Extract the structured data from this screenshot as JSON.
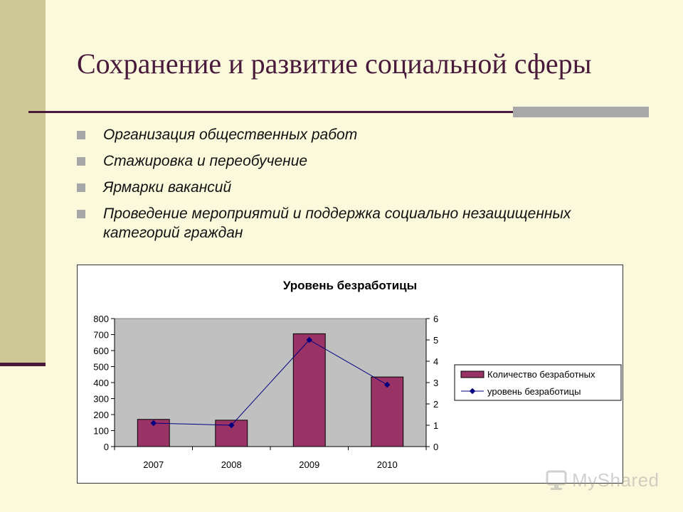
{
  "slide": {
    "title": "Сохранение и развитие социальной сферы",
    "bullets": [
      "Организация общественных работ",
      "Стажировка и переобучение",
      "Ярмарки вакансий",
      "Проведение мероприятий и поддержка социально незащищенных категорий граждан"
    ]
  },
  "watermark": {
    "text": "MyShared"
  },
  "colors": {
    "bar": "#993366",
    "line": "#000080",
    "plot_area": "#c0c0c0",
    "title": "#4a1a3c"
  },
  "chart_data": {
    "type": "bar",
    "title": "Уровень безработицы",
    "categories": [
      "2007",
      "2008",
      "2009",
      "2010"
    ],
    "series": [
      {
        "name": "Количество безработных",
        "type": "bar",
        "axis": "left",
        "values": [
          170,
          165,
          705,
          435
        ]
      },
      {
        "name": "уровень безработицы",
        "type": "line",
        "axis": "right",
        "values": [
          1.1,
          1.0,
          5.0,
          2.9
        ]
      }
    ],
    "y_left": {
      "min": 0,
      "max": 800,
      "ticks": [
        0,
        100,
        200,
        300,
        400,
        500,
        600,
        700,
        800
      ]
    },
    "y_right": {
      "min": 0,
      "max": 6,
      "ticks": [
        0,
        1,
        2,
        3,
        4,
        5,
        6
      ]
    },
    "grid": false,
    "legend_position": "right"
  }
}
